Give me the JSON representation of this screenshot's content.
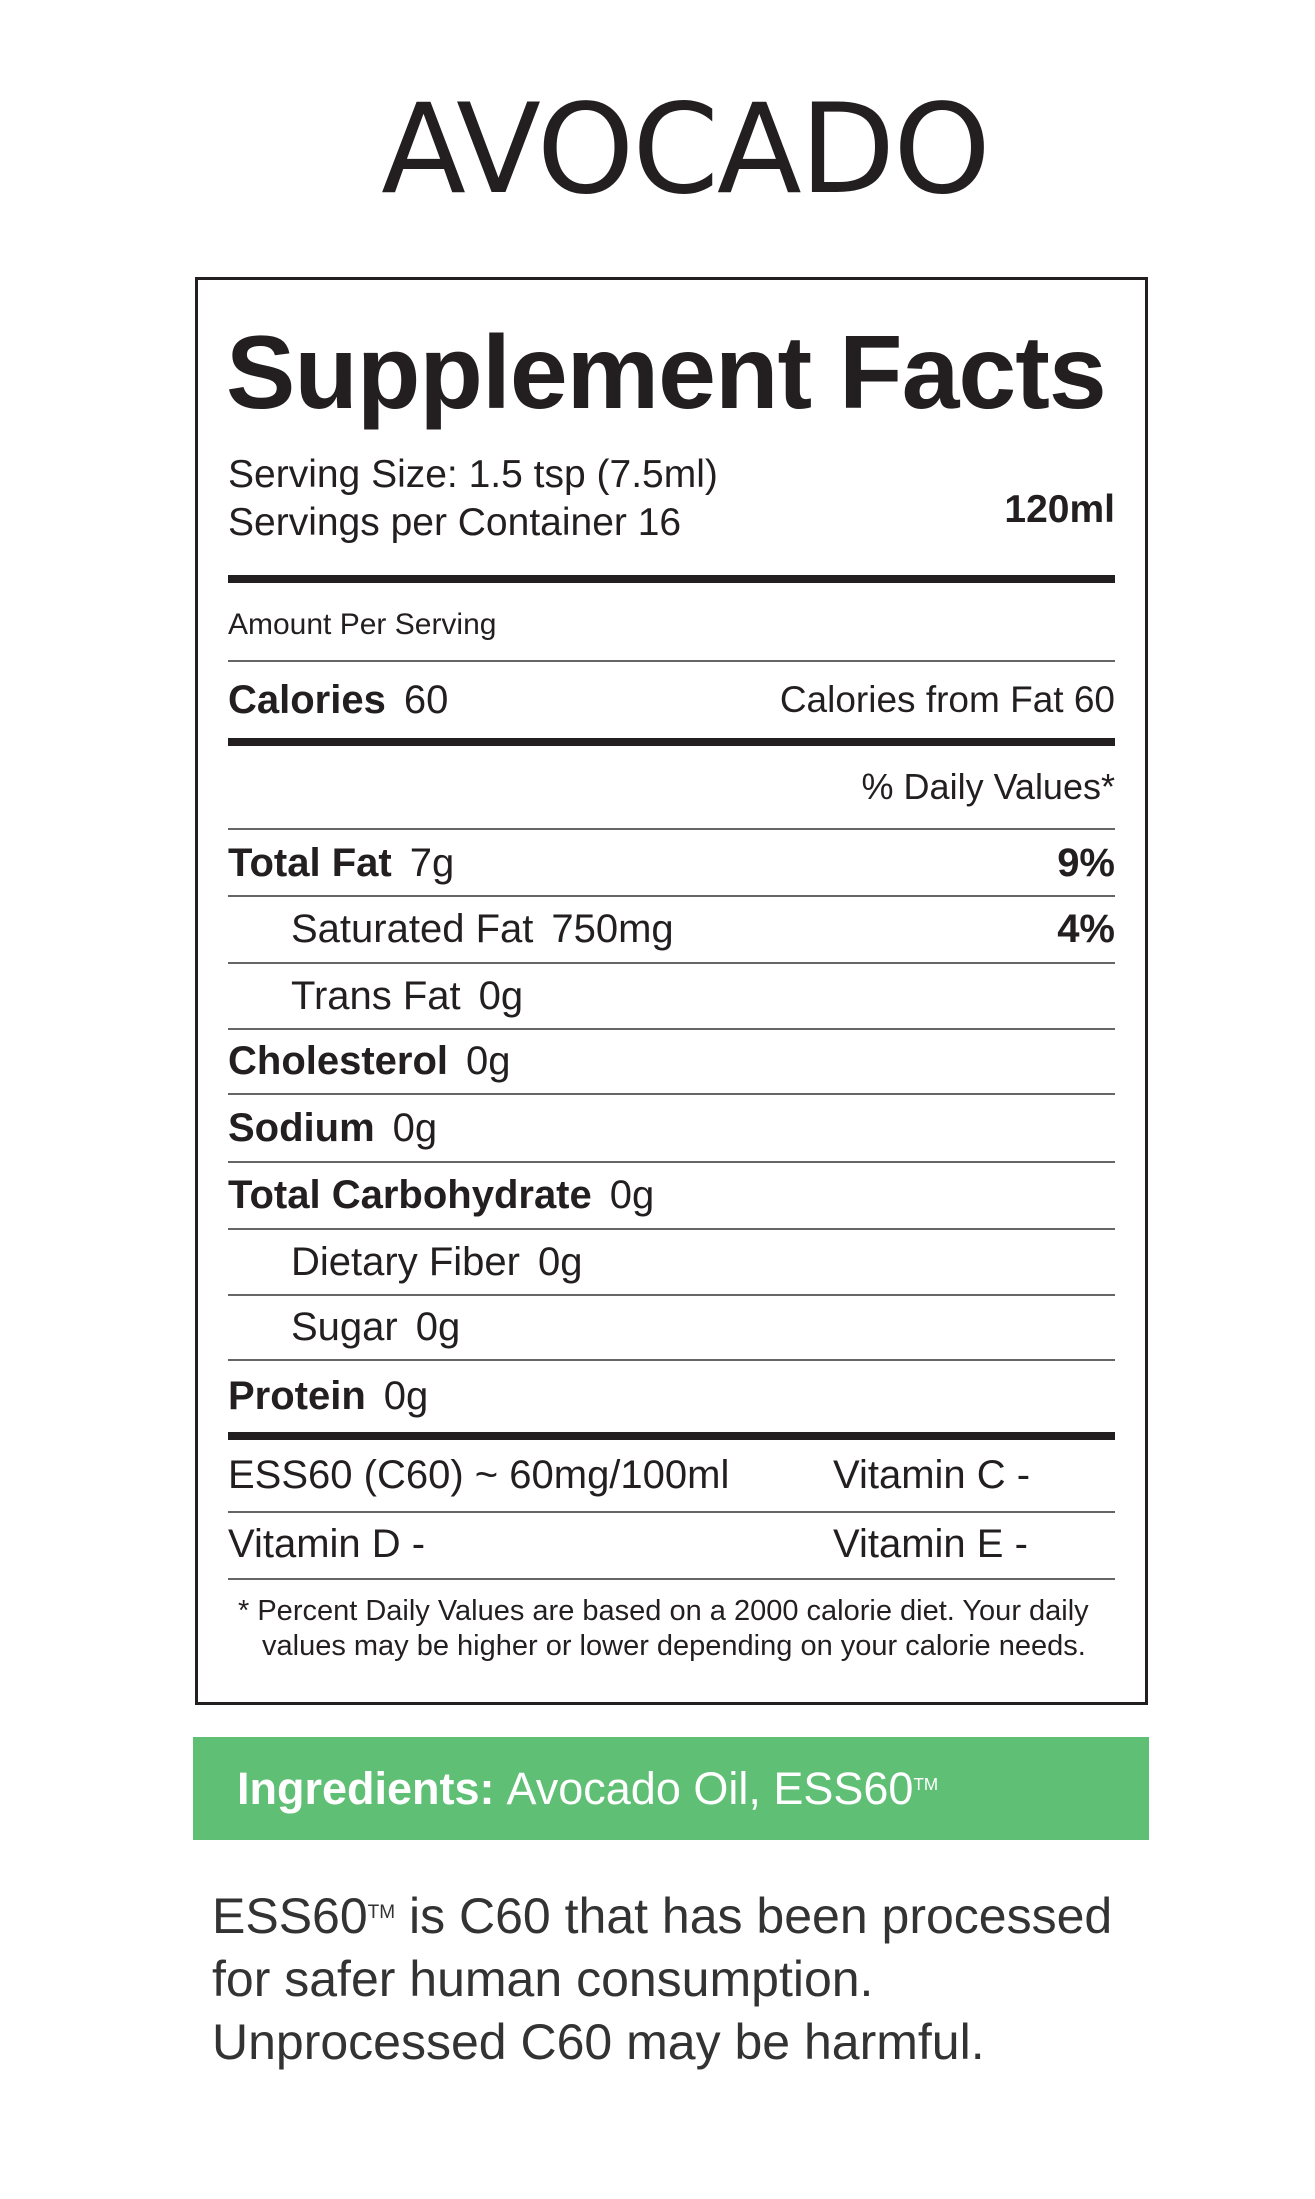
{
  "product_name": "AVOCADO",
  "label": {
    "title": "Supplement Facts",
    "serving_size": "Serving Size: 1.5 tsp (7.5ml)",
    "servings_per_container": "Servings per Container 16",
    "volume": "120ml",
    "amount_per_serving": "Amount Per Serving",
    "calories_label": "Calories",
    "calories_value": "60",
    "calories_from_fat": "Calories from Fat  60",
    "daily_values_header": "% Daily Values*",
    "nutrients": [
      {
        "name": "Total Fat",
        "amount": "7g",
        "dv": "9%",
        "bold": true,
        "indent": false
      },
      {
        "name": "Saturated Fat",
        "amount": "750mg",
        "dv": "4%",
        "bold": false,
        "indent": true
      },
      {
        "name": "Trans Fat",
        "amount": "0g",
        "dv": "",
        "bold": false,
        "indent": true
      },
      {
        "name": "Cholesterol",
        "amount": "0g",
        "dv": "",
        "bold": true,
        "indent": false
      },
      {
        "name": "Sodium",
        "amount": "0g",
        "dv": "",
        "bold": true,
        "indent": false
      },
      {
        "name": "Total Carbohydrate",
        "amount": "0g",
        "dv": "",
        "bold": true,
        "indent": false
      },
      {
        "name": "Dietary Fiber",
        "amount": "0g",
        "dv": "",
        "bold": false,
        "indent": true
      },
      {
        "name": "Sugar",
        "amount": "0g",
        "dv": "",
        "bold": false,
        "indent": true
      },
      {
        "name": "Protein",
        "amount": "0g",
        "dv": "",
        "bold": true,
        "indent": false
      }
    ],
    "extras": [
      {
        "left": "ESS60 (C60) ~ 60mg/100ml",
        "right": "Vitamin C -"
      },
      {
        "left": "Vitamin D -",
        "right": "Vitamin E -"
      }
    ],
    "footnote_line1": "*  Percent Daily Values are based on a 2000 calorie diet. Your daily",
    "footnote_line2": "values may be higher or lower depending on your calorie needs."
  },
  "ingredients": {
    "label": "Ingredients:",
    "value": "Avocado Oil, ESS60",
    "trademark": "TM",
    "band_color": "#5fbf75"
  },
  "note": {
    "brand": "ESS60",
    "trademark": "TM",
    "line1_rest": " is C60 that has been processed",
    "line2": "for safer human consumption.",
    "line3": "Unprocessed C60 may be harmful."
  }
}
